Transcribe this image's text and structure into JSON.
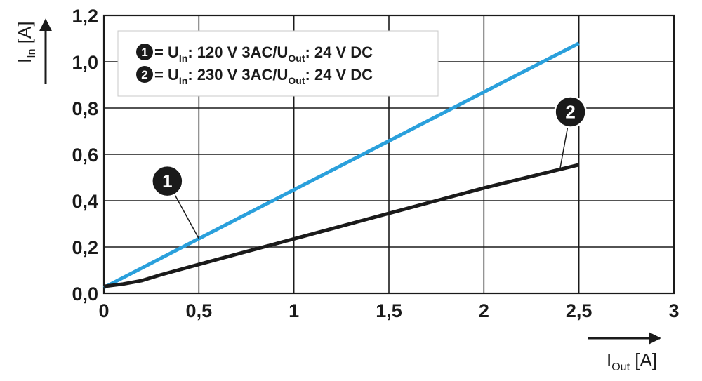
{
  "chart_data": {
    "type": "line",
    "xlabel": {
      "main": "I",
      "sub": "Out",
      "unit": " [A]"
    },
    "ylabel": {
      "main": "I",
      "sub": "In",
      "unit": " [A]"
    },
    "xlim": [
      0,
      3
    ],
    "ylim": [
      0,
      1.2
    ],
    "grid": true,
    "x_ticks": [
      {
        "value": 0,
        "label": "0"
      },
      {
        "value": 0.5,
        "label": "0,5"
      },
      {
        "value": 1,
        "label": "1"
      },
      {
        "value": 1.5,
        "label": "1,5"
      },
      {
        "value": 2,
        "label": "2"
      },
      {
        "value": 2.5,
        "label": "2,5"
      },
      {
        "value": 3,
        "label": "3"
      }
    ],
    "y_ticks": [
      {
        "value": 0,
        "label": "0,0"
      },
      {
        "value": 0.2,
        "label": "0,2"
      },
      {
        "value": 0.4,
        "label": "0,4"
      },
      {
        "value": 0.6,
        "label": "0,6"
      },
      {
        "value": 0.8,
        "label": "0,8"
      },
      {
        "value": 1.0,
        "label": "1,0"
      },
      {
        "value": 1.2,
        "label": "1,2"
      }
    ],
    "legend_placement": "top-left",
    "series": [
      {
        "marker": "1",
        "color": "#2aa0dc",
        "legend": [
          {
            "text": "= U",
            "sub": false
          },
          {
            "text": "In",
            "sub": true
          },
          {
            "text": ": 120 V 3AC/U",
            "sub": false
          },
          {
            "text": "Out",
            "sub": true
          },
          {
            "text": ": 24 V DC",
            "sub": false
          }
        ],
        "x": [
          0,
          0.5,
          1.0,
          1.5,
          2.0,
          2.5
        ],
        "y": [
          0.025,
          0.236,
          0.447,
          0.658,
          0.869,
          1.08
        ],
        "callout_at": [
          0.5,
          0.236
        ]
      },
      {
        "marker": "2",
        "color": "#1a1a1a",
        "legend": [
          {
            "text": "= U",
            "sub": false
          },
          {
            "text": "In",
            "sub": true
          },
          {
            "text": ": 230 V 3AC/U",
            "sub": false
          },
          {
            "text": "Out",
            "sub": true
          },
          {
            "text": ": 24 V DC",
            "sub": false
          }
        ],
        "x": [
          0,
          0.1,
          0.2,
          0.3,
          0.5,
          0.75,
          1.0,
          1.25,
          1.5,
          1.75,
          2.0,
          2.25,
          2.5
        ],
        "y": [
          0.03,
          0.04,
          0.055,
          0.08,
          0.125,
          0.18,
          0.235,
          0.29,
          0.345,
          0.4,
          0.455,
          0.505,
          0.555
        ],
        "callout_at": [
          2.4,
          0.535
        ]
      }
    ]
  }
}
